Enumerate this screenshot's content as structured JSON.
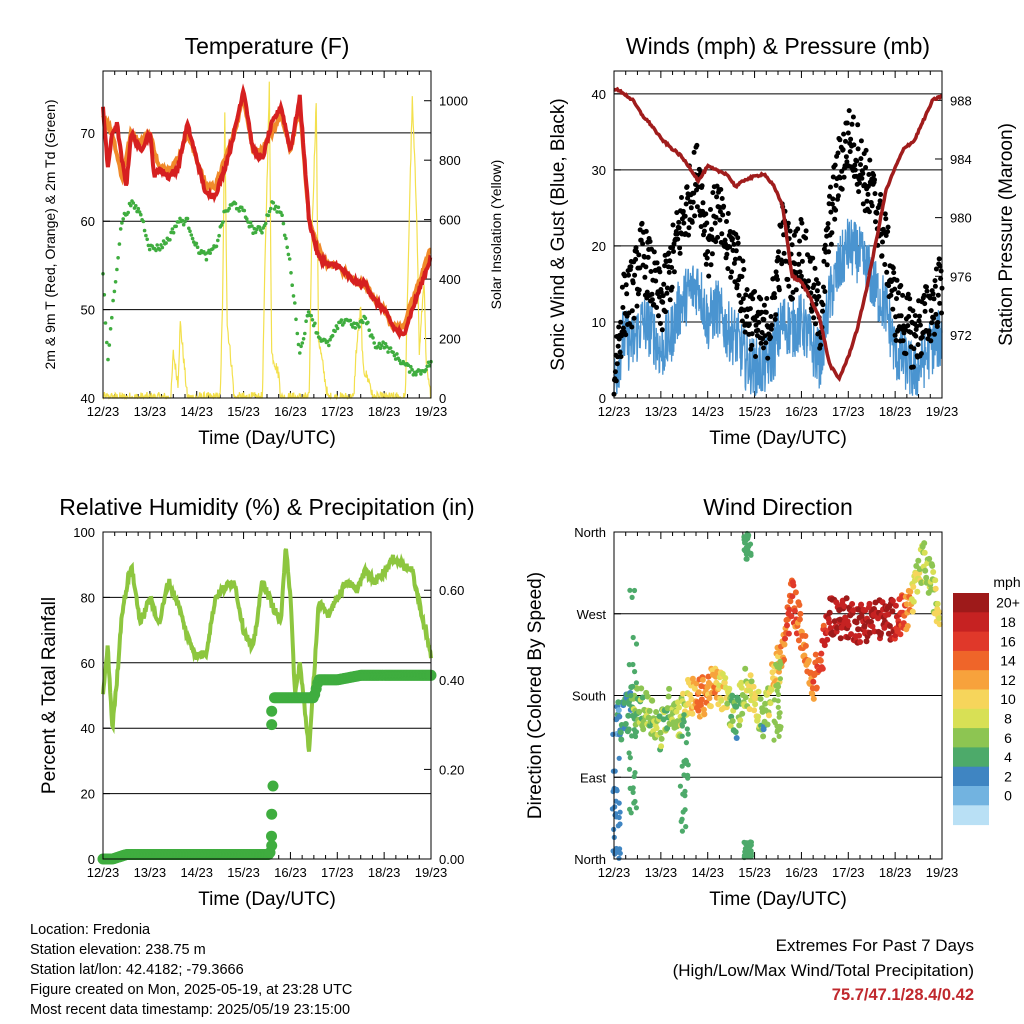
{
  "colors": {
    "temp_2m": "#d62020",
    "temp_9m": "#f08a2a",
    "dewpoint": "#3fad3f",
    "solar": "#f3e04d",
    "gust": "#000000",
    "wind": "#4a94d0",
    "pressure": "#a01c1c",
    "rh": "#8dc63f",
    "precip": "#3fad3f",
    "extremes": "#c0282d"
  },
  "time_ticks": [
    "12/23",
    "13/23",
    "14/23",
    "15/23",
    "16/23",
    "17/23",
    "18/23",
    "19/23"
  ],
  "chart_data": [
    {
      "id": "temperature",
      "type": "line",
      "title": "Temperature (F)",
      "xlabel": "Time (Day/UTC)",
      "ylabel": "2m & 9m T (Red, Orange) & 2m Td (Green)",
      "y2label": "Solar Insolation (Yellow)",
      "xlim": [
        0,
        7
      ],
      "ylim": [
        40,
        77
      ],
      "y2lim": [
        0,
        1100
      ],
      "yticks": [
        40,
        50,
        60,
        70
      ],
      "y2ticks": [
        0,
        200,
        400,
        600,
        800,
        1000
      ],
      "grid": true,
      "series": [
        {
          "key": "t2m",
          "x": [
            0,
            0.1,
            0.2,
            0.3,
            0.4,
            0.5,
            0.6,
            0.8,
            1.0,
            1.1,
            1.2,
            1.4,
            1.6,
            1.8,
            2.0,
            2.2,
            2.4,
            2.6,
            2.8,
            3.0,
            3.2,
            3.4,
            3.6,
            3.8,
            4.0,
            4.2,
            4.4,
            4.6,
            4.8,
            5.0,
            5.2,
            5.4,
            5.6,
            5.8,
            6.0,
            6.2,
            6.4,
            6.6,
            6.8,
            7.0
          ],
          "y": [
            73,
            66,
            70,
            71,
            67,
            64,
            70,
            68,
            70,
            65,
            66,
            65,
            66,
            71,
            67,
            63,
            63,
            66,
            70,
            75,
            68,
            67,
            71,
            73,
            68,
            74,
            60,
            56,
            55,
            55,
            54,
            53,
            53,
            51,
            50,
            48,
            47,
            50,
            53,
            56
          ]
        },
        {
          "key": "t9m",
          "x": [
            0,
            0.2,
            0.4,
            0.6,
            0.8,
            1.0,
            1.2,
            1.4,
            1.6,
            1.8,
            2.0,
            2.2,
            2.4,
            2.6,
            2.8,
            3.0,
            3.2,
            3.4,
            3.6,
            3.8,
            4.0,
            4.2,
            4.4,
            4.6,
            4.8,
            5.0,
            5.2,
            5.4,
            5.6,
            5.8,
            6.0,
            6.2,
            6.4,
            6.6,
            6.8,
            7.0
          ],
          "y": [
            72,
            70,
            65,
            70,
            69,
            70,
            66,
            66,
            67,
            70,
            67,
            64,
            64,
            67,
            70,
            74,
            68,
            68,
            70,
            72,
            68,
            73,
            60,
            57,
            55,
            55,
            54,
            53,
            53,
            51,
            50,
            48,
            48,
            51,
            54,
            57
          ]
        },
        {
          "key": "td",
          "x": [
            0,
            0.05,
            0.1,
            0.2,
            0.3,
            0.4,
            0.5,
            0.6,
            0.8,
            1.0,
            1.2,
            1.4,
            1.6,
            1.8,
            2.0,
            2.2,
            2.4,
            2.6,
            2.8,
            3.0,
            3.2,
            3.4,
            3.6,
            3.8,
            4.0,
            4.2,
            4.4,
            4.6,
            4.8,
            5.0,
            5.2,
            5.4,
            5.6,
            5.8,
            6.0,
            6.2,
            6.4,
            6.6,
            6.8,
            7.0
          ],
          "y": [
            54,
            49,
            44,
            50,
            55,
            60,
            61,
            62,
            61,
            57,
            57,
            58,
            60,
            60,
            57,
            56,
            57,
            61,
            62,
            61,
            59,
            59,
            62,
            61,
            55,
            45,
            50,
            47,
            46,
            48,
            49,
            48,
            49,
            46,
            46,
            45,
            44,
            43,
            43,
            44
          ]
        },
        {
          "key": "solar",
          "x": [
            0,
            1.45,
            1.5,
            1.6,
            1.65,
            1.8,
            1.85,
            2.0,
            2.05,
            2.5,
            2.55,
            2.6,
            2.65,
            2.75,
            2.8,
            3.4,
            3.45,
            3.55,
            3.6,
            3.75,
            3.8,
            4.4,
            4.45,
            4.55,
            4.6,
            4.75,
            4.8,
            5.35,
            5.4,
            5.5,
            5.55,
            5.7,
            5.75,
            6.45,
            6.5,
            6.55,
            6.6,
            6.7,
            6.75,
            6.85,
            6.9,
            7.0
          ],
          "y": [
            0,
            0,
            150,
            50,
            250,
            0,
            0,
            0,
            0,
            0,
            300,
            950,
            250,
            100,
            0,
            0,
            400,
            1050,
            150,
            80,
            0,
            0,
            500,
            1000,
            200,
            50,
            0,
            0,
            150,
            300,
            100,
            50,
            0,
            0,
            350,
            700,
            1000,
            600,
            150,
            400,
            100,
            0
          ]
        }
      ]
    },
    {
      "id": "winds",
      "type": "line",
      "title": "Winds (mph) & Pressure (mb)",
      "xlabel": "Time (Day/UTC)",
      "ylabel": "Sonic Wind & Gust (Blue, Black)",
      "y2label": "Station Pressure (Maroon)",
      "xlim": [
        0,
        7
      ],
      "ylim": [
        0,
        43
      ],
      "y2lim": [
        967.7,
        990
      ],
      "yticks": [
        0,
        10,
        20,
        30,
        40
      ],
      "y2ticks": [
        972,
        976,
        980,
        984,
        988
      ],
      "grid": true,
      "series": [
        {
          "key": "gust",
          "x": [
            0,
            0.2,
            0.4,
            0.6,
            0.8,
            1.0,
            1.2,
            1.4,
            1.6,
            1.8,
            2.0,
            2.2,
            2.4,
            2.6,
            2.8,
            3.0,
            3.2,
            3.4,
            3.6,
            3.8,
            4.0,
            4.2,
            4.4,
            4.6,
            4.8,
            5.0,
            5.2,
            5.4,
            5.6,
            5.8,
            6.0,
            6.2,
            6.4,
            6.6,
            6.8,
            7.0
          ],
          "y": [
            3,
            12,
            14,
            19,
            16,
            12,
            17,
            22,
            26,
            30,
            20,
            25,
            20,
            19,
            12,
            10,
            8,
            12,
            22,
            17,
            20,
            15,
            10,
            23,
            30,
            34,
            32,
            28,
            25,
            20,
            12,
            10,
            8,
            10,
            12,
            15
          ]
        },
        {
          "key": "wind",
          "x": [
            0,
            0.2,
            0.4,
            0.6,
            0.8,
            1.0,
            1.2,
            1.4,
            1.6,
            1.8,
            2.0,
            2.2,
            2.4,
            2.6,
            2.8,
            3.0,
            3.2,
            3.4,
            3.6,
            3.8,
            4.0,
            4.2,
            4.4,
            4.6,
            4.8,
            5.0,
            5.2,
            5.4,
            5.6,
            5.8,
            6.0,
            6.2,
            6.4,
            6.6,
            6.8,
            7.0
          ],
          "y": [
            2,
            8,
            7,
            10,
            9,
            6,
            8,
            12,
            14,
            15,
            10,
            12,
            9,
            8,
            5,
            4,
            4,
            6,
            10,
            9,
            10,
            7,
            5,
            13,
            17,
            20,
            19,
            17,
            14,
            12,
            6,
            5,
            3,
            5,
            7,
            8
          ]
        },
        {
          "key": "pressure",
          "x": [
            0,
            0.2,
            0.4,
            0.6,
            0.8,
            1.0,
            1.2,
            1.4,
            1.6,
            1.8,
            2.0,
            2.2,
            2.4,
            2.6,
            2.8,
            3.0,
            3.2,
            3.4,
            3.6,
            3.8,
            4.0,
            4.2,
            4.4,
            4.6,
            4.8,
            5.0,
            5.2,
            5.4,
            5.6,
            5.8,
            6.0,
            6.2,
            6.4,
            6.6,
            6.8,
            7.0
          ],
          "y": [
            988.8,
            988.5,
            988.0,
            987.0,
            986.3,
            985.4,
            984.8,
            984.3,
            983.5,
            982.5,
            983.5,
            983.2,
            983.0,
            982.1,
            982.6,
            982.8,
            983.0,
            982.2,
            980.8,
            976.0,
            975.6,
            974.5,
            973.0,
            970.0,
            969.0,
            970.5,
            972.5,
            975.3,
            978.5,
            981.8,
            983.4,
            984.8,
            985.2,
            986.6,
            988.0,
            988.3
          ]
        }
      ]
    },
    {
      "id": "humidity",
      "type": "line",
      "title": "Relative Humidity (%) & Precipitation (in)",
      "xlabel": "Time (Day/UTC)",
      "ylabel": "Percent & Total Rainfall",
      "xlim": [
        0,
        7
      ],
      "ylim": [
        0,
        100
      ],
      "y2lim": [
        0,
        0.73
      ],
      "yticks": [
        0,
        20,
        40,
        60,
        80,
        100
      ],
      "y2ticks": [
        "0.00",
        "0.20",
        "0.40",
        "0.60"
      ],
      "y2tick_values": [
        0,
        0.2,
        0.4,
        0.6
      ],
      "grid": true,
      "series": [
        {
          "key": "rh",
          "x": [
            0,
            0.1,
            0.2,
            0.3,
            0.4,
            0.6,
            0.8,
            1.0,
            1.2,
            1.4,
            1.6,
            1.8,
            2.0,
            2.2,
            2.4,
            2.6,
            2.8,
            3.0,
            3.2,
            3.4,
            3.6,
            3.8,
            3.9,
            4.0,
            4.1,
            4.2,
            4.4,
            4.6,
            4.8,
            5.0,
            5.2,
            5.4,
            5.6,
            5.8,
            6.0,
            6.2,
            6.4,
            6.6,
            6.8,
            7.0
          ],
          "y": [
            50,
            65,
            40,
            55,
            75,
            90,
            72,
            80,
            72,
            85,
            78,
            68,
            62,
            63,
            80,
            83,
            85,
            70,
            64,
            85,
            78,
            72,
            97,
            80,
            50,
            60,
            33,
            78,
            75,
            80,
            85,
            82,
            88,
            85,
            88,
            92,
            90,
            88,
            75,
            62
          ]
        },
        {
          "key": "precip",
          "x": [
            0,
            0.2,
            0.5,
            1.0,
            2.0,
            3.0,
            3.55,
            3.58,
            3.62,
            3.65,
            4.0,
            4.5,
            4.6,
            4.7,
            5.0,
            5.5,
            6.0,
            6.5,
            7.0
          ],
          "y": [
            0,
            0,
            0.01,
            0.01,
            0.01,
            0.01,
            0.01,
            0.02,
            0.1,
            0.36,
            0.36,
            0.36,
            0.4,
            0.4,
            0.4,
            0.41,
            0.41,
            0.41,
            0.41
          ]
        }
      ]
    },
    {
      "id": "wind_direction",
      "type": "scatter",
      "title": "Wind Direction",
      "xlabel": "Time (Day/UTC)",
      "ylabel": "Direction (Colored By Speed)",
      "xlim": [
        0,
        7
      ],
      "ylim": [
        0,
        360
      ],
      "yticks": [
        0,
        90,
        180,
        270,
        360
      ],
      "ytick_labels": [
        "North",
        "East",
        "South",
        "West",
        "North"
      ],
      "grid": true,
      "legend": {
        "placement": "right",
        "title": "mph",
        "labels": [
          "20+",
          "18",
          "16",
          "14",
          "12",
          "10",
          "8",
          "6",
          "4",
          "2",
          "0"
        ],
        "colors": [
          "#9e1a1a",
          "#c62222",
          "#e0382a",
          "#ef6529",
          "#f7a23c",
          "#f6d55b",
          "#d8e055",
          "#8dc552",
          "#4daa6a",
          "#3f85c2",
          "#72b3e0",
          "#b9e0f5"
        ]
      },
      "series": [
        {
          "key": "segments",
          "x": [
            0.1,
            0.4,
            0.8,
            1.0,
            1.2,
            1.4,
            1.6,
            1.8,
            2.0,
            2.2,
            2.4,
            2.6,
            2.7,
            2.8,
            3.0,
            3.2,
            3.4,
            3.6,
            3.8,
            4.0,
            4.2,
            4.4,
            4.6,
            4.8,
            5.0,
            5.2,
            5.4,
            5.6,
            5.8,
            6.0,
            6.2,
            6.4,
            6.6,
            6.8,
            6.9
          ],
          "y": [
            150,
            170,
            160,
            140,
            170,
            155,
            180,
            175,
            185,
            190,
            180,
            150,
            175,
            190,
            180,
            150,
            200,
            225,
            290,
            250,
            190,
            215,
            270,
            265,
            265,
            260,
            262,
            265,
            262,
            265,
            270,
            290,
            330,
            300,
            275
          ],
          "speed": [
            3,
            6,
            8,
            7,
            7,
            8,
            10,
            14,
            13,
            12,
            10,
            5,
            7,
            8,
            10,
            5,
            12,
            14,
            16,
            14,
            14,
            16,
            20,
            20,
            20,
            20,
            20,
            20,
            20,
            19,
            16,
            10,
            8,
            8,
            10
          ]
        }
      ]
    }
  ],
  "info": {
    "location": "Location: Fredonia",
    "elevation": "Station elevation: 238.75 m",
    "latlon": "Station lat/lon: 42.4182; -79.3666",
    "created": "Figure created on Mon, 2025-05-19, at 23:28 UTC",
    "latest": "Most recent data timestamp: 2025/05/19 23:15:00"
  },
  "extremes": {
    "heading": "Extremes For Past 7 Days",
    "subheading": "(High/Low/Max Wind/Total Precipitation)",
    "values": "75.7/47.1/28.4/0.42"
  }
}
